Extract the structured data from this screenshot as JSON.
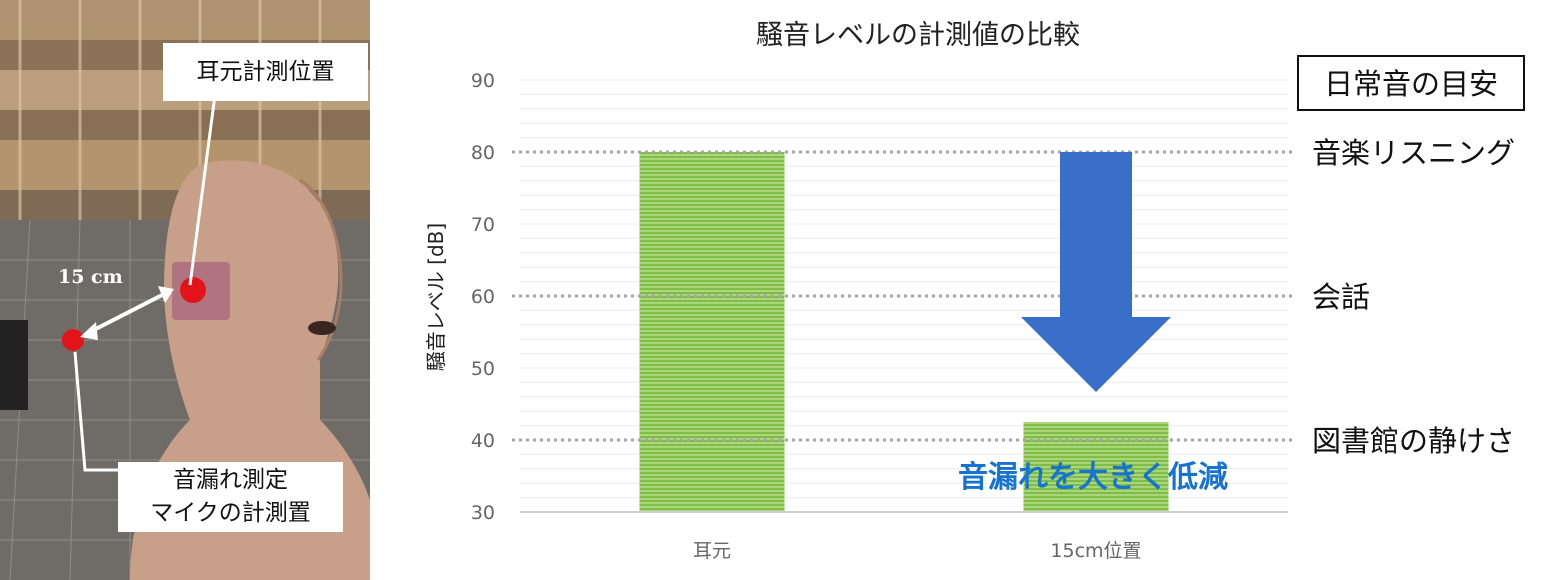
{
  "photo": {
    "ear_label": "耳元計測位置",
    "mic_label_line1": "音漏れ測定",
    "mic_label_line2": "マイクの計測置",
    "distance_label": "15 cm"
  },
  "chart_data": {
    "type": "bar",
    "title": "騒音レベルの計測値の比較",
    "ylabel": "騒音レベル [dB]",
    "xlabel": "",
    "categories": [
      "耳元",
      "15cm位置"
    ],
    "values": [
      80,
      42.5
    ],
    "ylim": [
      30,
      90
    ],
    "yticks": [
      30,
      40,
      50,
      60,
      70,
      80,
      90
    ],
    "grid": true,
    "bar_color": "#8dc63f",
    "reference_title": "日常音の目安",
    "reference_lines": [
      {
        "value": 80,
        "label": "音楽リスニング"
      },
      {
        "value": 60,
        "label": "会話"
      },
      {
        "value": 40,
        "label": "図書館の静けさ"
      }
    ],
    "annotation": "音漏れを大きく低減",
    "arrow_color": "#3a6fc9"
  }
}
